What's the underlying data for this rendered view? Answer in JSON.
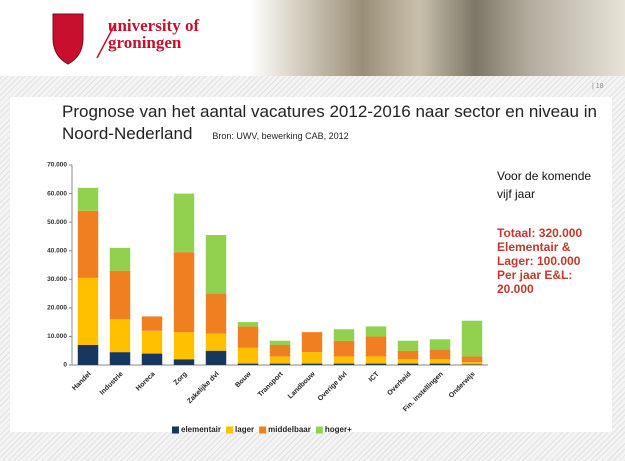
{
  "header": {
    "logo_line1": "university of",
    "logo_line2": "groningen"
  },
  "page_number": "| 18",
  "slide": {
    "title": "Prognose van het aantal vacatures 2012-2016 naar sector en niveau in Noord-Nederland",
    "source": "Bron: UWV, bewerking CAB, 2012"
  },
  "side_text": {
    "intro": "Voor de komende vijf jaar",
    "lines": [
      "Totaal: 320.000",
      "Elementair & Lager: 100.000",
      "Per jaar E&L: 20.000"
    ]
  },
  "chart_data": {
    "type": "stacked_bar",
    "categories": [
      "Handel",
      "Industrie",
      "Horeca",
      "Zorg",
      "Zakelijke dvl",
      "Bouw",
      "Transport",
      "Landbouw",
      "Overige dvl",
      "ICT",
      "Overheid",
      "Fin. instellingen",
      "Onderwijs"
    ],
    "series": [
      {
        "name": "elementair",
        "color": "#17375e",
        "values": [
          7000,
          4500,
          4000,
          2000,
          5000,
          500,
          500,
          500,
          500,
          500,
          500,
          500,
          200
        ]
      },
      {
        "name": "lager",
        "color": "#ffc000",
        "values": [
          23500,
          11500,
          8000,
          9500,
          6000,
          5500,
          2500,
          4000,
          2500,
          2500,
          1500,
          1500,
          800
        ]
      },
      {
        "name": "middelbaar",
        "color": "#f07f21",
        "values": [
          23500,
          17000,
          5000,
          28000,
          14000,
          7500,
          4000,
          7000,
          5500,
          7000,
          3000,
          3500,
          2000
        ]
      },
      {
        "name": "hoger+",
        "color": "#92d050",
        "values": [
          8000,
          8000,
          0,
          20500,
          20500,
          1500,
          1500,
          0,
          4000,
          3500,
          3500,
          3500,
          12500
        ]
      }
    ],
    "ylim": [
      0,
      70000
    ],
    "yticks": [
      0,
      {
        "value": 10000,
        "label": "10.000"
      },
      {
        "value": 20000,
        "label": "20.000"
      },
      {
        "value": 30000,
        "label": "30.000"
      },
      {
        "value": 40000,
        "label": "40.000"
      },
      {
        "value": 50000,
        "label": "50.000"
      },
      {
        "value": 60000,
        "label": "60.000"
      },
      {
        "value": 70000,
        "label": "70.000"
      }
    ],
    "grid": false,
    "legend": "bottom"
  }
}
